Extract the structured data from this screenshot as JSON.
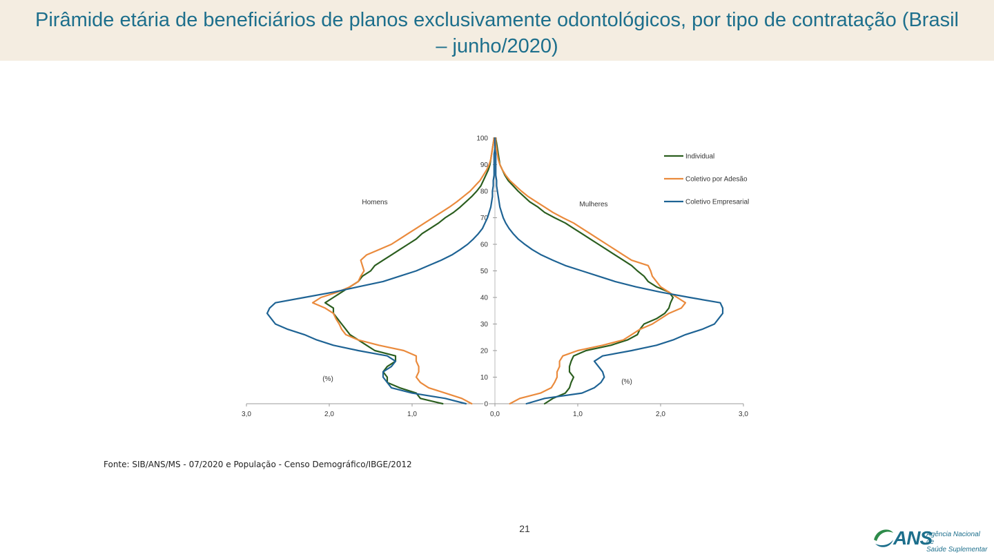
{
  "page": {
    "title": "Pirâmide etária de beneficiários de planos exclusivamente odontológicos, por tipo de contratação (Brasil – junho/2020)",
    "source": "Fonte: SIB/ANS/MS - 07/2020 e População - Censo Demográfico/IBGE/2012",
    "page_number": "21",
    "logo": {
      "text": "ANS",
      "agency_line1": "Agência Nacional de",
      "agency_line2": "Saúde Suplementar",
      "icon": "ans-swoosh-logo"
    },
    "colors": {
      "title": "#1d6f8c",
      "title_bg": "#f4ede1"
    }
  },
  "chart_data": {
    "type": "line",
    "title": "",
    "left_label": "Homens",
    "right_label": "Mulheres",
    "left_unit": "(%)",
    "right_unit": "(%)",
    "ylim": [
      0,
      100
    ],
    "xlim": [
      -3,
      3
    ],
    "y_ticks": [
      "0",
      "10",
      "20",
      "30",
      "40",
      "50",
      "60",
      "70",
      "80",
      "90",
      "100"
    ],
    "x_ticks": [
      "3,0",
      "2,0",
      "1,0",
      "0,0",
      "1,0",
      "2,0",
      "3,0"
    ],
    "legend_position": "top-right",
    "ages": [
      0,
      2,
      4,
      6,
      8,
      10,
      12,
      14,
      16,
      18,
      20,
      22,
      24,
      26,
      28,
      30,
      32,
      34,
      36,
      38,
      40,
      42,
      44,
      46,
      48,
      50,
      52,
      54,
      56,
      58,
      60,
      62,
      64,
      66,
      68,
      70,
      72,
      74,
      76,
      78,
      80,
      82,
      84,
      86,
      88,
      90,
      92,
      94,
      96,
      98,
      100
    ],
    "series": [
      {
        "name": "Individual",
        "color": "#2b5e1f",
        "men": [
          0.63,
          0.9,
          0.95,
          1.15,
          1.3,
          1.3,
          1.35,
          1.3,
          1.2,
          1.2,
          1.45,
          1.55,
          1.65,
          1.75,
          1.8,
          1.85,
          1.9,
          1.95,
          1.95,
          2.05,
          1.95,
          1.85,
          1.75,
          1.65,
          1.6,
          1.5,
          1.45,
          1.35,
          1.25,
          1.15,
          1.05,
          0.95,
          0.88,
          0.78,
          0.68,
          0.6,
          0.5,
          0.42,
          0.35,
          0.28,
          0.22,
          0.17,
          0.14,
          0.11,
          0.08,
          0.06,
          0.05,
          0.04,
          0.03,
          0.02,
          0.01
        ],
        "women": [
          0.6,
          0.7,
          0.85,
          0.9,
          0.92,
          0.95,
          0.9,
          0.9,
          0.92,
          0.95,
          1.1,
          1.4,
          1.6,
          1.72,
          1.75,
          1.8,
          1.95,
          2.05,
          2.1,
          2.12,
          2.15,
          2.1,
          1.95,
          1.85,
          1.8,
          1.72,
          1.65,
          1.55,
          1.45,
          1.35,
          1.25,
          1.15,
          1.05,
          0.95,
          0.85,
          0.72,
          0.6,
          0.52,
          0.42,
          0.35,
          0.28,
          0.22,
          0.16,
          0.12,
          0.09,
          0.06,
          0.05,
          0.04,
          0.03,
          0.02,
          0.01
        ]
      },
      {
        "name": "Coletivo por Adesão",
        "color": "#ea8a3c",
        "men": [
          0.28,
          0.4,
          0.6,
          0.8,
          0.9,
          0.95,
          0.92,
          0.92,
          0.95,
          0.95,
          1.1,
          1.4,
          1.65,
          1.8,
          1.85,
          1.88,
          1.92,
          1.95,
          2.05,
          2.2,
          2.1,
          1.9,
          1.75,
          1.65,
          1.62,
          1.58,
          1.6,
          1.62,
          1.55,
          1.4,
          1.25,
          1.15,
          1.05,
          0.95,
          0.85,
          0.75,
          0.65,
          0.55,
          0.46,
          0.38,
          0.3,
          0.24,
          0.18,
          0.14,
          0.1,
          0.07,
          0.05,
          0.04,
          0.03,
          0.02,
          0.01
        ],
        "women": [
          0.18,
          0.3,
          0.55,
          0.68,
          0.72,
          0.75,
          0.75,
          0.78,
          0.78,
          0.82,
          1.0,
          1.3,
          1.55,
          1.65,
          1.75,
          1.9,
          2.0,
          2.1,
          2.25,
          2.3,
          2.2,
          2.1,
          2.0,
          1.95,
          1.9,
          1.88,
          1.85,
          1.65,
          1.55,
          1.45,
          1.35,
          1.25,
          1.15,
          1.05,
          0.95,
          0.82,
          0.7,
          0.6,
          0.5,
          0.4,
          0.32,
          0.25,
          0.18,
          0.13,
          0.09,
          0.06,
          0.04,
          0.03,
          0.02,
          0.01,
          0.01
        ]
      },
      {
        "name": "Coletivo Empresarial",
        "color": "#1e6394",
        "men": [
          0.35,
          0.6,
          1.0,
          1.25,
          1.3,
          1.35,
          1.35,
          1.25,
          1.2,
          1.3,
          1.65,
          1.95,
          2.15,
          2.3,
          2.5,
          2.65,
          2.7,
          2.75,
          2.72,
          2.65,
          2.3,
          1.95,
          1.65,
          1.35,
          1.15,
          0.95,
          0.8,
          0.65,
          0.52,
          0.42,
          0.33,
          0.26,
          0.2,
          0.15,
          0.12,
          0.09,
          0.07,
          0.05,
          0.04,
          0.03,
          0.03,
          0.02,
          0.02,
          0.01,
          0.01,
          0.01,
          0.01,
          0.01,
          0.0,
          0.0,
          0.0
        ],
        "women": [
          0.38,
          0.6,
          1.05,
          1.2,
          1.28,
          1.32,
          1.3,
          1.25,
          1.2,
          1.3,
          1.65,
          1.95,
          2.15,
          2.3,
          2.5,
          2.65,
          2.7,
          2.75,
          2.75,
          2.72,
          2.35,
          2.0,
          1.7,
          1.45,
          1.25,
          1.05,
          0.85,
          0.7,
          0.56,
          0.45,
          0.36,
          0.28,
          0.22,
          0.17,
          0.13,
          0.1,
          0.08,
          0.06,
          0.05,
          0.04,
          0.03,
          0.02,
          0.02,
          0.01,
          0.01,
          0.01,
          0.01,
          0.01,
          0.0,
          0.0,
          0.0
        ]
      }
    ]
  }
}
